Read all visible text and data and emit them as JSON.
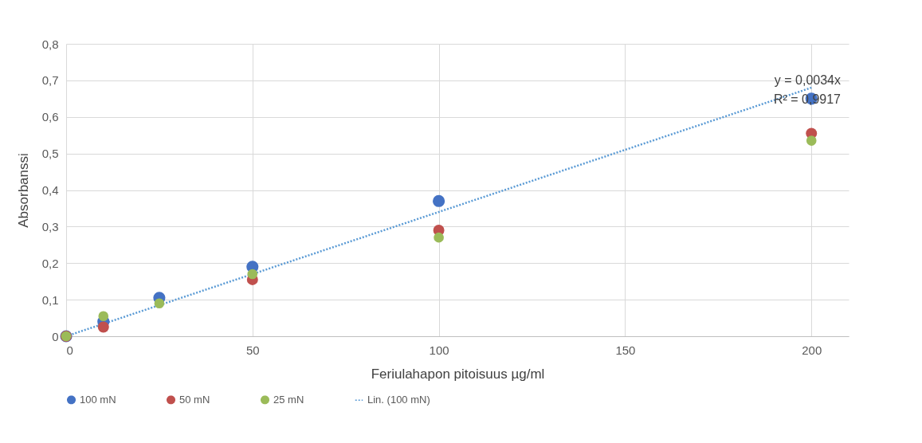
{
  "chart_data": {
    "type": "scatter",
    "xlabel": "Feriulahapon pitoisuus µg/ml",
    "ylabel": "Absorbanssi",
    "x": [
      0,
      10,
      25,
      50,
      100,
      200
    ],
    "series": [
      {
        "name": "100 mN",
        "color": "#4472c4",
        "values": [
          0,
          0.04,
          0.105,
          0.19,
          0.37,
          0.65
        ]
      },
      {
        "name": "50 mN",
        "color": "#c0504d",
        "values": [
          0,
          0.025,
          null,
          0.155,
          0.29,
          0.555
        ]
      },
      {
        "name": "25 mN",
        "color": "#9bbb59",
        "values": [
          0,
          0.055,
          0.09,
          0.17,
          0.27,
          0.535
        ]
      },
      {
        "name": "Lin. (100 mN)",
        "color": "#5b9bd5",
        "type": "line",
        "line_style": "dotted",
        "marker": "none",
        "x": [
          0,
          200
        ],
        "values": [
          0,
          0.68
        ]
      }
    ],
    "xlim": [
      0,
      210
    ],
    "xticks": [
      0,
      50,
      100,
      150,
      200
    ],
    "ylim": [
      0,
      0.8
    ],
    "yticks": [
      0,
      {
        "value": 0.1,
        "label": "0,1"
      },
      {
        "value": 0.2,
        "label": "0,2"
      },
      {
        "value": 0.3,
        "label": "0,3"
      },
      {
        "value": 0.4,
        "label": "0,4"
      },
      {
        "value": 0.5,
        "label": "0,5"
      },
      {
        "value": 0.6,
        "label": "0,6"
      },
      {
        "value": 0.7,
        "label": "0,7"
      },
      {
        "value": 0.8,
        "label": "0,8"
      }
    ],
    "annotations": [
      "y = 0,0034x",
      "R² = 0,9917"
    ],
    "marker": "circle",
    "grid": true,
    "legend": "bottom"
  }
}
